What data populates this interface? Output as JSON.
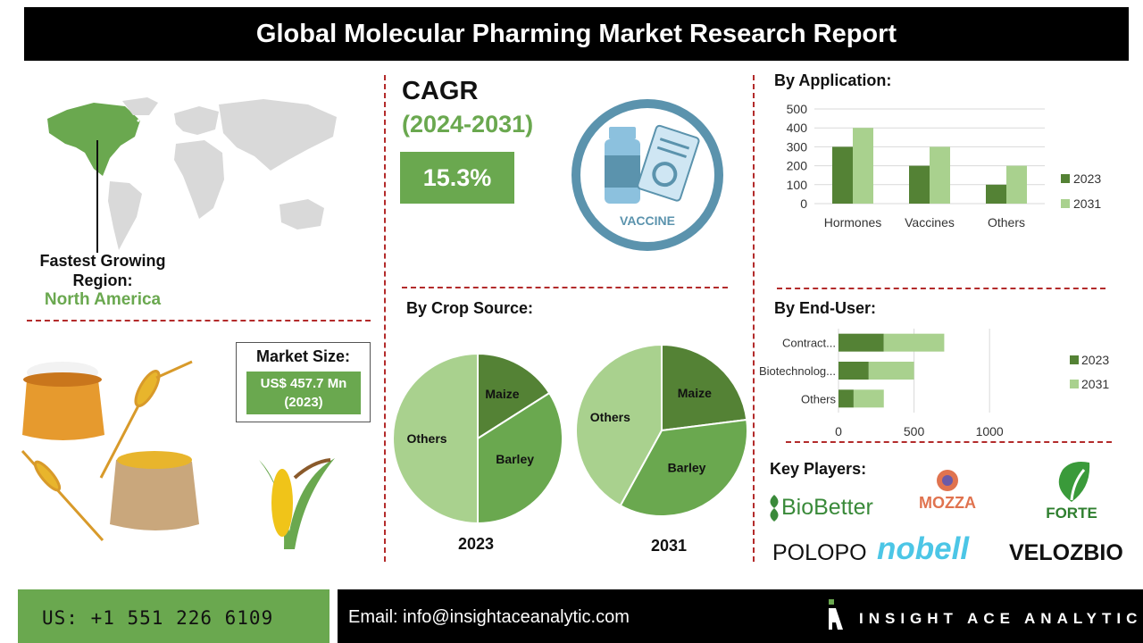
{
  "header": {
    "title": "Global Molecular Pharming Market Research Report"
  },
  "region": {
    "label": "Fastest Growing Region:",
    "value": "North America"
  },
  "cagr": {
    "label": "CAGR",
    "period": "(2024-2031)",
    "value": "15.3%"
  },
  "vaccine_badge": "VACCINE",
  "market_size": {
    "label": "Market Size:",
    "value_line1": "US$ 457.7 Mn",
    "value_line2": "(2023)"
  },
  "sections": {
    "application": "By Application:",
    "crop_source": "By Crop Source:",
    "end_user": "By End-User:",
    "key_players": "Key Players:"
  },
  "colors": {
    "dark_green": "#548235",
    "light_green": "#a9d18e",
    "accent_green": "#6aa84f",
    "divider_red": "#b32b2b"
  },
  "chart_data": [
    {
      "type": "bar",
      "title": "By Application:",
      "categories": [
        "Hormones",
        "Vaccines",
        "Others"
      ],
      "series": [
        {
          "name": "2023",
          "values": [
            300,
            200,
            100
          ]
        },
        {
          "name": "2031",
          "values": [
            400,
            300,
            200
          ]
        }
      ],
      "ylim": [
        0,
        500
      ],
      "yticks": [
        "0",
        "100",
        "200",
        "300",
        "400",
        "500"
      ],
      "grid": true,
      "legend": "right"
    },
    {
      "type": "pie",
      "title": "By Crop Source:",
      "caption": "2023",
      "labels": [
        "Maize",
        "Barley",
        "Others"
      ],
      "values": [
        16,
        34,
        50
      ]
    },
    {
      "type": "pie",
      "title": "By Crop Source:",
      "caption": "2031",
      "labels": [
        "Maize",
        "Barley",
        "Others"
      ],
      "values": [
        23,
        35,
        42
      ]
    },
    {
      "type": "bar",
      "orientation": "horizontal",
      "stacked": true,
      "title": "By End-User:",
      "categories": [
        "Contract...",
        "Biotechnolog...",
        "Others"
      ],
      "series": [
        {
          "name": "2023",
          "values": [
            300,
            200,
            100
          ]
        },
        {
          "name": "2031",
          "values": [
            400,
            300,
            200
          ]
        }
      ],
      "xlim": [
        0,
        1200
      ],
      "xticks": [
        "0",
        "500",
        "1000"
      ],
      "grid": true,
      "legend": "right"
    }
  ],
  "key_players": [
    "BioBetter",
    "MOZZA",
    "FORTE",
    "POLOPO",
    "nobell",
    "VELOZBIO"
  ],
  "footer": {
    "phone": "US: +1 551 226 6109",
    "email": "Email: info@insightaceanalytic.com",
    "brand": "INSIGHT ACE ANALYTIC"
  }
}
